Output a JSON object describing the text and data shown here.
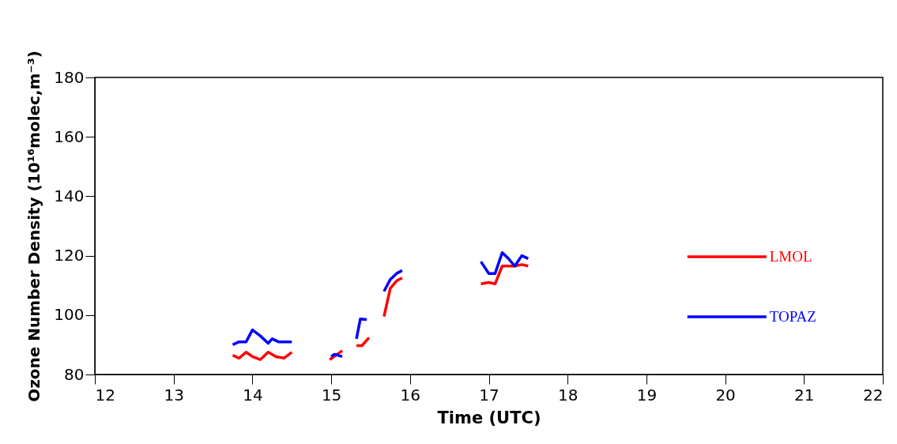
{
  "chart_data": {
    "type": "line",
    "xlabel": "Time (UTC)",
    "ylabel": "Ozone Number Density (10¹⁶molec,m⁻³)",
    "xlim": [
      12,
      22
    ],
    "xticks": [
      12,
      13,
      14,
      15,
      16,
      17,
      18,
      19,
      20,
      21,
      22
    ],
    "ylim": [
      80,
      180
    ],
    "yticks": [
      80,
      100,
      120,
      140,
      160,
      180
    ],
    "legend": "right",
    "grid": false,
    "line_style": "solid",
    "marker": "none",
    "series": [
      {
        "name": "LMOL",
        "color": "#ff0000",
        "x": [
          13.75,
          13.83,
          13.92,
          14.0,
          14.1,
          14.2,
          14.3,
          14.4,
          14.5,
          14.75,
          14.98,
          15.14,
          15.23,
          15.32,
          15.39,
          15.48,
          15.57,
          15.67,
          15.75,
          15.83,
          15.9,
          16.4,
          16.9,
          17.0,
          17.08,
          17.17,
          17.25,
          17.33,
          17.42,
          17.5
        ],
        "values": [
          86.5,
          85.5,
          87.5,
          86,
          85,
          87.5,
          86,
          85.5,
          87.5,
          null,
          85,
          88,
          null,
          89.7,
          89.7,
          92.4,
          null,
          99.5,
          109,
          111.5,
          112.5,
          null,
          110.5,
          111,
          110.5,
          116.5,
          116.5,
          116.5,
          117,
          116.5
        ]
      },
      {
        "name": "TOPAZ",
        "color": "#0000ff",
        "x": [
          13.75,
          13.83,
          13.92,
          14.0,
          14.1,
          14.2,
          14.25,
          14.33,
          14.42,
          14.5,
          14.75,
          15.0,
          15.04,
          15.14,
          15.23,
          15.32,
          15.37,
          15.45,
          15.57,
          15.67,
          15.75,
          15.83,
          15.9,
          16.4,
          16.9,
          17.0,
          17.08,
          17.17,
          17.25,
          17.33,
          17.42,
          17.5
        ],
        "values": [
          90,
          91,
          91,
          95,
          93,
          90.5,
          92,
          91,
          91,
          91,
          null,
          86,
          86.8,
          86,
          null,
          92,
          98.7,
          98.5,
          null,
          108,
          112,
          114,
          115,
          null,
          118,
          114,
          114,
          121,
          119,
          116.5,
          120,
          119
        ]
      }
    ]
  }
}
